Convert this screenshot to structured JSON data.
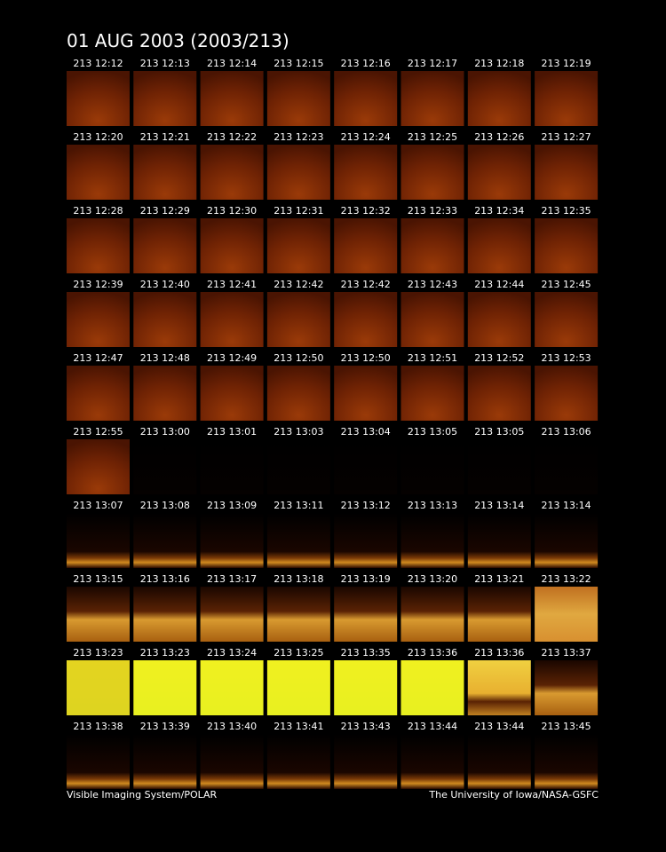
{
  "header": {
    "title": "01 AUG 2003  (2003/213)"
  },
  "grid": {
    "rows": [
      [
        "213 12:12",
        "213 12:13",
        "213 12:14",
        "213 12:15",
        "213 12:16",
        "213 12:17",
        "213 12:18",
        "213 12:19"
      ],
      [
        "213 12:20",
        "213 12:21",
        "213 12:22",
        "213 12:23",
        "213 12:24",
        "213 12:25",
        "213 12:26",
        "213 12:27"
      ],
      [
        "213 12:28",
        "213 12:29",
        "213 12:30",
        "213 12:31",
        "213 12:32",
        "213 12:33",
        "213 12:34",
        "213 12:35"
      ],
      [
        "213 12:39",
        "213 12:40",
        "213 12:41",
        "213 12:42",
        "213 12:42",
        "213 12:43",
        "213 12:44",
        "213 12:45"
      ],
      [
        "213 12:47",
        "213 12:48",
        "213 12:49",
        "213 12:50",
        "213 12:50",
        "213 12:51",
        "213 12:52",
        "213 12:53"
      ],
      [
        "213 12:55",
        "213 13:00",
        "213 13:01",
        "213 13:03",
        "213 13:04",
        "213 13:05",
        "213 13:05",
        "213 13:06"
      ],
      [
        "213 13:07",
        "213 13:08",
        "213 13:09",
        "213 13:11",
        "213 13:12",
        "213 13:13",
        "213 13:14",
        "213 13:14"
      ],
      [
        "213 13:15",
        "213 13:16",
        "213 13:17",
        "213 13:18",
        "213 13:19",
        "213 13:20",
        "213 13:21",
        "213 13:22"
      ],
      [
        "213 13:23",
        "213 13:23",
        "213 13:24",
        "213 13:25",
        "213 13:35",
        "213 13:36",
        "213 13:36",
        "213 13:37"
      ],
      [
        "213 13:38",
        "213 13:39",
        "213 13:40",
        "213 13:41",
        "213 13:43",
        "213 13:44",
        "213 13:44",
        "213 13:45"
      ]
    ]
  },
  "footer": {
    "left": "Visible Imaging System/POLAR",
    "right": "The University of Iowa/NASA-GSFC"
  }
}
